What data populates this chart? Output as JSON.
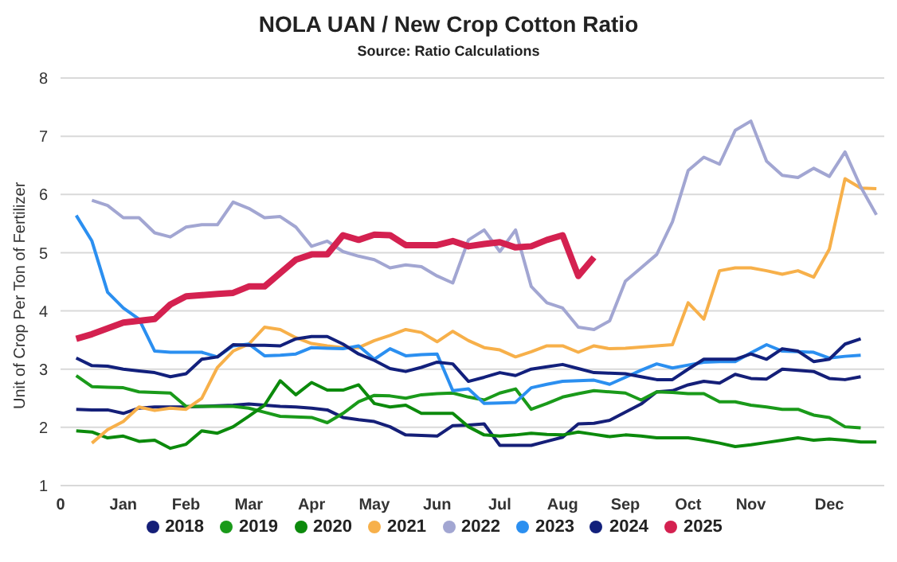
{
  "chart_data": {
    "type": "line",
    "title": "NOLA UAN / New Crop Cotton Ratio",
    "subtitle": "Source: Ratio Calculations",
    "ylabel": "Unit of Crop Per Ton of Fertilizer",
    "categories": [
      "0",
      null,
      null,
      null,
      "Jan",
      null,
      null,
      null,
      "Feb",
      null,
      null,
      null,
      "Mar",
      null,
      null,
      null,
      "Apr",
      null,
      null,
      null,
      "May",
      null,
      null,
      null,
      "Jun",
      null,
      null,
      null,
      "Jul",
      null,
      null,
      null,
      "Aug",
      null,
      null,
      null,
      "Sep",
      null,
      null,
      null,
      "Oct",
      null,
      null,
      null,
      "Nov",
      null,
      null,
      null,
      null,
      "Dec",
      null,
      null,
      null
    ],
    "ylim": [
      1,
      8
    ],
    "yticks": [
      1,
      2,
      3,
      4,
      5,
      6,
      7,
      8
    ],
    "grid": "y",
    "legend": "bottom",
    "marker": "none",
    "line_style": "solid",
    "series": [
      {
        "name": "2018",
        "color": "#151f78",
        "values": [
          null,
          2.31,
          2.3,
          2.3,
          2.24,
          2.33,
          2.35,
          2.35,
          2.35,
          2.36,
          2.37,
          2.38,
          2.4,
          2.38,
          2.36,
          2.35,
          2.33,
          2.3,
          2.17,
          2.13,
          2.1,
          2.01,
          1.87,
          1.86,
          1.85,
          2.03,
          2.04,
          2.06,
          1.69,
          1.69,
          1.69,
          1.76,
          1.83,
          2.06,
          2.07,
          2.12,
          2.26,
          2.4,
          2.61,
          2.63,
          2.73,
          2.79,
          2.76,
          2.91,
          2.84,
          2.83,
          3.0,
          2.98,
          2.96,
          2.84,
          2.82,
          2.87,
          null
        ]
      },
      {
        "name": "2019",
        "color": "#1a9a1a",
        "values": [
          null,
          2.89,
          2.7,
          2.69,
          2.68,
          2.61,
          2.6,
          2.59,
          2.36,
          2.36,
          2.36,
          2.36,
          2.33,
          2.26,
          2.19,
          2.18,
          2.17,
          2.08,
          2.24,
          2.44,
          2.55,
          2.54,
          2.5,
          2.56,
          2.58,
          2.59,
          2.52,
          2.47,
          2.59,
          2.66,
          2.31,
          2.41,
          2.52,
          2.58,
          2.63,
          2.61,
          2.59,
          2.47,
          2.61,
          2.6,
          2.58,
          2.58,
          2.44,
          2.44,
          2.38,
          2.35,
          2.31,
          2.31,
          2.21,
          2.17,
          2.01,
          1.99,
          null
        ]
      },
      {
        "name": "2020",
        "color": "#0c8a0c",
        "values": [
          null,
          1.94,
          1.92,
          1.82,
          1.85,
          1.76,
          1.78,
          1.64,
          1.71,
          1.94,
          1.9,
          2.01,
          2.19,
          2.38,
          2.8,
          2.56,
          2.77,
          2.64,
          2.64,
          2.73,
          2.41,
          2.35,
          2.38,
          2.24,
          2.24,
          2.24,
          2.01,
          1.87,
          1.85,
          1.87,
          1.9,
          1.88,
          1.87,
          1.92,
          1.88,
          1.84,
          1.87,
          1.85,
          1.82,
          1.82,
          1.82,
          1.78,
          1.73,
          1.67,
          1.7,
          1.74,
          1.78,
          1.82,
          1.78,
          1.8,
          1.78,
          1.75,
          1.75
        ]
      },
      {
        "name": "2021",
        "color": "#f7b04a",
        "values": [
          null,
          null,
          1.73,
          1.96,
          2.1,
          2.35,
          2.29,
          2.33,
          2.31,
          2.5,
          3.03,
          3.31,
          3.43,
          3.72,
          3.68,
          3.54,
          3.44,
          3.4,
          3.37,
          3.37,
          3.49,
          3.58,
          3.68,
          3.63,
          3.47,
          3.65,
          3.49,
          3.37,
          3.33,
          3.21,
          3.3,
          3.4,
          3.4,
          3.29,
          3.4,
          3.35,
          3.36,
          3.38,
          3.4,
          3.42,
          4.14,
          3.86,
          4.69,
          4.74,
          4.74,
          4.69,
          4.63,
          4.69,
          4.58,
          5.06,
          6.27,
          6.11,
          6.1
        ]
      },
      {
        "name": "2022",
        "color": "#a2a6d2",
        "values": [
          null,
          null,
          5.9,
          5.81,
          5.6,
          5.6,
          5.34,
          5.27,
          5.44,
          5.48,
          5.48,
          5.87,
          5.76,
          5.6,
          5.62,
          5.44,
          5.11,
          5.2,
          5.02,
          4.94,
          4.88,
          4.74,
          4.79,
          4.76,
          4.6,
          4.48,
          5.22,
          5.39,
          5.02,
          5.39,
          4.42,
          4.14,
          4.05,
          3.72,
          3.68,
          3.83,
          4.51,
          4.74,
          4.97,
          5.53,
          6.41,
          6.64,
          6.52,
          7.1,
          7.26,
          6.57,
          6.33,
          6.29,
          6.45,
          6.31,
          6.73,
          6.13,
          5.65
        ]
      },
      {
        "name": "2023",
        "color": "#2b8ff0",
        "values": [
          null,
          5.64,
          5.2,
          4.32,
          4.05,
          3.86,
          3.31,
          3.29,
          3.29,
          3.29,
          3.21,
          3.4,
          3.43,
          3.23,
          3.24,
          3.26,
          3.37,
          3.36,
          3.35,
          3.4,
          3.17,
          3.35,
          3.23,
          3.25,
          3.26,
          2.63,
          2.66,
          2.41,
          2.42,
          2.43,
          2.68,
          2.74,
          2.79,
          2.8,
          2.81,
          2.74,
          2.86,
          2.98,
          3.09,
          3.02,
          3.07,
          3.12,
          3.13,
          3.13,
          3.28,
          3.42,
          3.31,
          3.3,
          3.29,
          3.19,
          3.22,
          3.24,
          null
        ]
      },
      {
        "name": "2024",
        "color": "#12207c",
        "values": [
          null,
          3.19,
          3.06,
          3.05,
          3.0,
          2.97,
          2.94,
          2.87,
          2.92,
          3.17,
          3.21,
          3.42,
          3.41,
          3.41,
          3.4,
          3.52,
          3.56,
          3.56,
          3.43,
          3.26,
          3.15,
          3.01,
          2.96,
          3.03,
          3.12,
          3.09,
          2.79,
          2.86,
          2.94,
          2.89,
          3.0,
          3.04,
          3.08,
          3.01,
          2.94,
          2.93,
          2.92,
          2.87,
          2.82,
          2.82,
          3.0,
          3.17,
          3.17,
          3.17,
          3.26,
          3.17,
          3.35,
          3.31,
          3.13,
          3.17,
          3.43,
          3.52,
          null
        ]
      },
      {
        "name": "2025",
        "color": "#d42150",
        "values": [
          null,
          3.52,
          3.6,
          3.7,
          3.8,
          3.83,
          3.86,
          4.11,
          4.25,
          4.27,
          4.29,
          4.31,
          4.42,
          4.42,
          4.65,
          4.88,
          4.97,
          4.97,
          5.3,
          5.22,
          5.31,
          5.3,
          5.13,
          5.13,
          5.13,
          5.2,
          5.11,
          5.15,
          5.18,
          5.09,
          5.11,
          5.22,
          5.3,
          4.6,
          4.92,
          null,
          null,
          null,
          null,
          null,
          null,
          null,
          null,
          null,
          null,
          null,
          null,
          null,
          null,
          null,
          null,
          null,
          null
        ]
      }
    ]
  }
}
